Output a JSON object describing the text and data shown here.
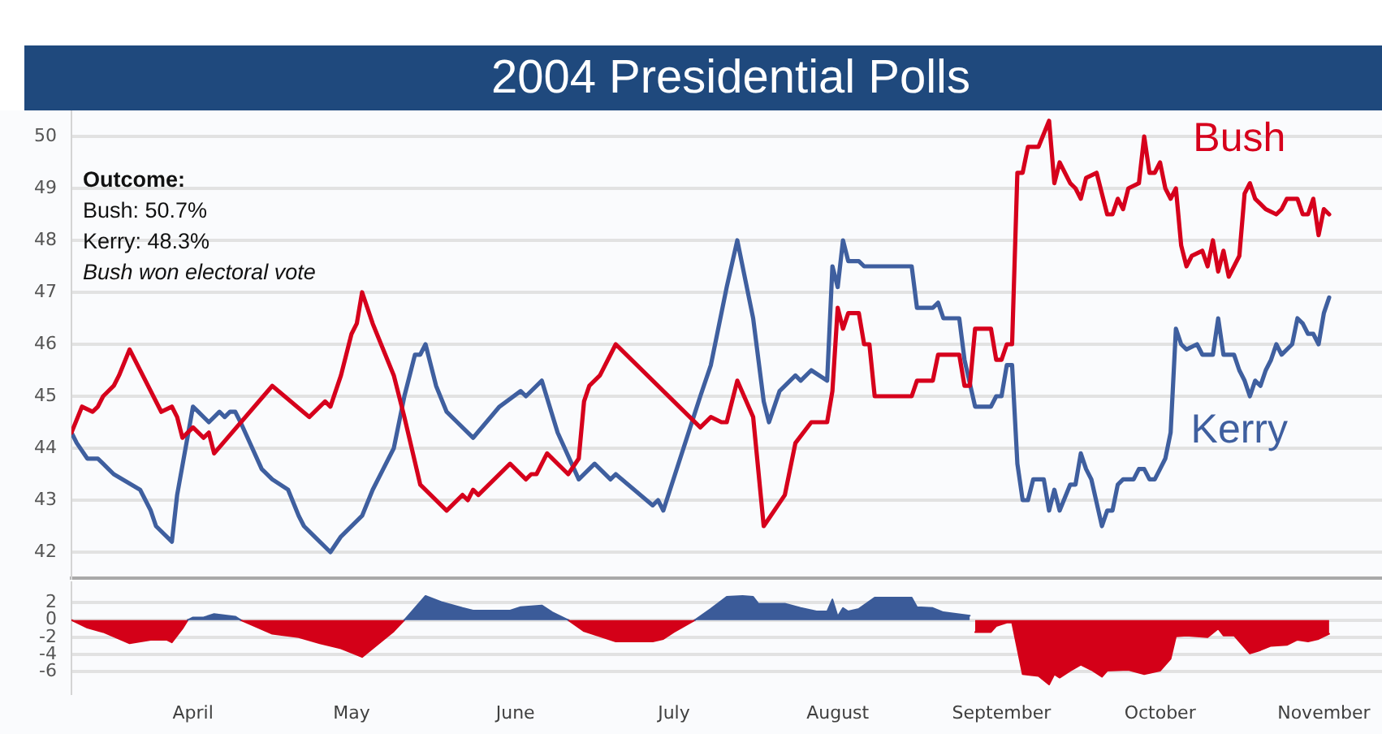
{
  "chart_data": [
    {
      "type": "line",
      "title": "2004 Presidential Polls",
      "annotations": [
        "Outcome:",
        "Bush: 50.7%",
        "Kerry: 48.3%",
        "Bush won electoral vote"
      ],
      "xlim": [
        "2004-03-09",
        "2004-11-12"
      ],
      "ylim": [
        41.5,
        50.5
      ],
      "yticks": [
        42,
        43,
        44,
        45,
        46,
        47,
        48,
        49,
        50
      ],
      "grid": "y",
      "tick_labels": "y",
      "series": [
        {
          "name": "Bush",
          "color": "#d6001c",
          "x": [
            "2004-03-09",
            "2004-03-11",
            "2004-03-13",
            "2004-03-14",
            "2004-03-15",
            "2004-03-17",
            "2004-03-18",
            "2004-03-20",
            "2004-03-26",
            "2004-03-28",
            "2004-03-29",
            "2004-03-30",
            "2004-04-01",
            "2004-04-03",
            "2004-04-04",
            "2004-04-05",
            "2004-04-16",
            "2004-04-23",
            "2004-04-26",
            "2004-04-27",
            "2004-04-29",
            "2004-05-01",
            "2004-05-02",
            "2004-05-03",
            "2004-05-05",
            "2004-05-07",
            "2004-05-09",
            "2004-05-11",
            "2004-05-14",
            "2004-05-19",
            "2004-05-22",
            "2004-05-23",
            "2004-05-24",
            "2004-05-25",
            "2004-05-31",
            "2004-06-03",
            "2004-06-04",
            "2004-06-05",
            "2004-06-07",
            "2004-06-11",
            "2004-06-13",
            "2004-06-14",
            "2004-06-15",
            "2004-06-17",
            "2004-06-20",
            "2004-07-06",
            "2004-07-08",
            "2004-07-10",
            "2004-07-11",
            "2004-07-13",
            "2004-07-16",
            "2004-07-18",
            "2004-07-22",
            "2004-07-24",
            "2004-07-27",
            "2004-07-30",
            "2004-07-31",
            "2004-08-01",
            "2004-08-02",
            "2004-08-03",
            "2004-08-05",
            "2004-08-06",
            "2004-08-07",
            "2004-08-08",
            "2004-08-15",
            "2004-08-16",
            "2004-08-19",
            "2004-08-20",
            "2004-08-24",
            "2004-08-25",
            "2004-08-26",
            "2004-08-27",
            "2004-08-30",
            "2004-08-31",
            "2004-09-01",
            "2004-09-02",
            "2004-09-03",
            "2004-09-04",
            "2004-09-05",
            "2004-09-06",
            "2004-09-08",
            "2004-09-10",
            "2004-09-11",
            "2004-09-12",
            "2004-09-14",
            "2004-09-15",
            "2004-09-16",
            "2004-09-17",
            "2004-09-19",
            "2004-09-21",
            "2004-09-22",
            "2004-09-23",
            "2004-09-24",
            "2004-09-25",
            "2004-09-27",
            "2004-09-28",
            "2004-09-29",
            "2004-09-30",
            "2004-10-01",
            "2004-10-02",
            "2004-10-03",
            "2004-10-04",
            "2004-10-05",
            "2004-10-06",
            "2004-10-07",
            "2004-10-09",
            "2004-10-10",
            "2004-10-11",
            "2004-10-12",
            "2004-10-13",
            "2004-10-14",
            "2004-10-16",
            "2004-10-17",
            "2004-10-18",
            "2004-10-19",
            "2004-10-20",
            "2004-10-21",
            "2004-10-23",
            "2004-10-24",
            "2004-10-25",
            "2004-10-27",
            "2004-10-28",
            "2004-10-29",
            "2004-10-30",
            "2004-10-31",
            "2004-11-01",
            "2004-11-02"
          ],
          "values": [
            44.3,
            44.8,
            44.7,
            44.8,
            45.0,
            45.2,
            45.4,
            45.9,
            44.7,
            44.8,
            44.6,
            44.2,
            44.4,
            44.2,
            44.3,
            43.9,
            45.2,
            44.6,
            44.9,
            44.8,
            45.4,
            46.2,
            46.4,
            47.0,
            46.4,
            45.9,
            45.4,
            44.6,
            43.3,
            42.8,
            43.1,
            43.0,
            43.2,
            43.1,
            43.7,
            43.4,
            43.5,
            43.5,
            43.9,
            43.5,
            43.8,
            44.9,
            45.2,
            45.4,
            46.0,
            44.4,
            44.6,
            44.5,
            44.5,
            45.3,
            44.6,
            42.5,
            43.1,
            44.1,
            44.5,
            44.5,
            45.1,
            46.7,
            46.3,
            46.6,
            46.6,
            46.0,
            46.0,
            45.0,
            45.0,
            45.3,
            45.3,
            45.8,
            45.8,
            45.2,
            45.2,
            46.3,
            46.3,
            45.7,
            45.7,
            46.0,
            46.0,
            49.3,
            49.3,
            49.8,
            49.8,
            50.3,
            49.1,
            49.5,
            49.1,
            49.0,
            48.8,
            49.2,
            49.3,
            48.5,
            48.5,
            48.8,
            48.6,
            49.0,
            49.1,
            50.0,
            49.3,
            49.3,
            49.5,
            49.0,
            48.8,
            49.0,
            47.9,
            47.5,
            47.7,
            47.8,
            47.5,
            48.0,
            47.4,
            47.8,
            47.3,
            47.7,
            48.9,
            49.1,
            48.8,
            48.7,
            48.6,
            48.5,
            48.6,
            48.8,
            48.8,
            48.5,
            48.5,
            48.8,
            48.1,
            48.6,
            48.5
          ]
        },
        {
          "name": "Kerry",
          "color": "#3f5f9f",
          "x": [
            "2004-03-09",
            "2004-03-10",
            "2004-03-12",
            "2004-03-14",
            "2004-03-15",
            "2004-03-16",
            "2004-03-17",
            "2004-03-22",
            "2004-03-24",
            "2004-03-25",
            "2004-03-28",
            "2004-03-29",
            "2004-04-01",
            "2004-04-02",
            "2004-04-04",
            "2004-04-06",
            "2004-04-07",
            "2004-04-08",
            "2004-04-09",
            "2004-04-10",
            "2004-04-14",
            "2004-04-16",
            "2004-04-19",
            "2004-04-21",
            "2004-04-22",
            "2004-04-24",
            "2004-04-27",
            "2004-04-29",
            "2004-05-03",
            "2004-05-05",
            "2004-05-07",
            "2004-05-09",
            "2004-05-11",
            "2004-05-13",
            "2004-05-14",
            "2004-05-15",
            "2004-05-17",
            "2004-05-19",
            "2004-05-21",
            "2004-05-24",
            "2004-05-29",
            "2004-06-02",
            "2004-06-03",
            "2004-06-06",
            "2004-06-09",
            "2004-06-13",
            "2004-06-16",
            "2004-06-19",
            "2004-06-20",
            "2004-06-27",
            "2004-06-28",
            "2004-06-29",
            "2004-07-06",
            "2004-07-08",
            "2004-07-11",
            "2004-07-13",
            "2004-07-16",
            "2004-07-18",
            "2004-07-19",
            "2004-07-21",
            "2004-07-24",
            "2004-07-25",
            "2004-07-27",
            "2004-07-30",
            "2004-07-31",
            "2004-08-01",
            "2004-08-02",
            "2004-08-03",
            "2004-08-05",
            "2004-08-06",
            "2004-08-15",
            "2004-08-16",
            "2004-08-19",
            "2004-08-20",
            "2004-08-21",
            "2004-08-24",
            "2004-08-25",
            "2004-08-27",
            "2004-08-30",
            "2004-08-31",
            "2004-09-01",
            "2004-09-02",
            "2004-09-03",
            "2004-09-04",
            "2004-09-05",
            "2004-09-06",
            "2004-09-07",
            "2004-09-09",
            "2004-09-10",
            "2004-09-11",
            "2004-09-12",
            "2004-09-14",
            "2004-09-15",
            "2004-09-16",
            "2004-09-17",
            "2004-09-18",
            "2004-09-20",
            "2004-09-21",
            "2004-09-22",
            "2004-09-23",
            "2004-09-24",
            "2004-09-26",
            "2004-09-27",
            "2004-09-28",
            "2004-09-29",
            "2004-09-30",
            "2004-10-01",
            "2004-10-02",
            "2004-10-03",
            "2004-10-04",
            "2004-10-05",
            "2004-10-06",
            "2004-10-08",
            "2004-10-09",
            "2004-10-11",
            "2004-10-12",
            "2004-10-13",
            "2004-10-15",
            "2004-10-16",
            "2004-10-17",
            "2004-10-18",
            "2004-10-19",
            "2004-10-20",
            "2004-10-21",
            "2004-10-22",
            "2004-10-23",
            "2004-10-24",
            "2004-10-26",
            "2004-10-27",
            "2004-10-28",
            "2004-10-29",
            "2004-10-30",
            "2004-10-31",
            "2004-11-01",
            "2004-11-02"
          ],
          "values": [
            44.3,
            44.1,
            43.8,
            43.8,
            43.7,
            43.6,
            43.5,
            43.2,
            42.8,
            42.5,
            42.2,
            43.1,
            44.8,
            44.7,
            44.5,
            44.7,
            44.6,
            44.7,
            44.7,
            44.5,
            43.6,
            43.4,
            43.2,
            42.7,
            42.5,
            42.3,
            42.0,
            42.3,
            42.7,
            43.2,
            43.6,
            44.0,
            45.0,
            45.8,
            45.8,
            46.0,
            45.2,
            44.7,
            44.5,
            44.2,
            44.8,
            45.1,
            45.0,
            45.3,
            44.3,
            43.4,
            43.7,
            43.4,
            43.5,
            42.9,
            43.0,
            42.8,
            45.0,
            45.6,
            47.1,
            48.0,
            46.5,
            44.9,
            44.5,
            45.1,
            45.4,
            45.3,
            45.5,
            45.3,
            47.5,
            47.1,
            48.0,
            47.6,
            47.6,
            47.5,
            47.5,
            46.7,
            46.7,
            46.8,
            46.5,
            46.5,
            45.7,
            44.8,
            44.8,
            45.0,
            45.0,
            45.6,
            45.6,
            43.7,
            43.0,
            43.0,
            43.4,
            43.4,
            42.8,
            43.2,
            42.8,
            43.3,
            43.3,
            43.9,
            43.6,
            43.4,
            42.5,
            42.8,
            42.8,
            43.3,
            43.4,
            43.4,
            43.6,
            43.6,
            43.4,
            43.4,
            43.6,
            43.8,
            44.3,
            46.3,
            46.0,
            45.9,
            46.0,
            45.8,
            45.8,
            46.5,
            45.8,
            45.8,
            45.5,
            45.3,
            45.0,
            45.3,
            45.2,
            45.5,
            45.7,
            46.0,
            45.8,
            46.0,
            46.5,
            46.4,
            46.2,
            46.2,
            46.0,
            46.6,
            46.9
          ]
        }
      ]
    },
    {
      "type": "area",
      "xlim": [
        "2004-03-09",
        "2004-11-12"
      ],
      "xticks": [
        {
          "value": "2004-04-01",
          "label": "April"
        },
        {
          "value": "2004-05-01",
          "label": "May"
        },
        {
          "value": "2004-06-01",
          "label": "June"
        },
        {
          "value": "2004-07-01",
          "label": "July"
        },
        {
          "value": "2004-08-01",
          "label": "August"
        },
        {
          "value": "2004-09-01",
          "label": "September"
        },
        {
          "value": "2004-10-01",
          "label": "October"
        },
        {
          "value": "2004-11-01",
          "label": "November"
        }
      ],
      "ylim": [
        -8.5,
        4.5
      ],
      "yticks": [
        -6,
        -4,
        -2,
        0,
        2
      ],
      "grid": "y",
      "series": [
        {
          "color": "#3b5b99",
          "x": [
            "2004-03-31",
            "2004-04-01",
            "2004-04-03",
            "2004-04-05",
            "2004-04-09",
            "2004-04-10",
            "2004-04-20",
            "2004-05-11",
            "2004-05-15",
            "2004-05-18",
            "2004-05-22",
            "2004-05-24",
            "2004-05-31",
            "2004-06-02",
            "2004-06-06",
            "2004-06-08",
            "2004-06-11",
            "2004-06-20",
            "2004-07-05",
            "2004-07-08",
            "2004-07-11",
            "2004-07-14",
            "2004-07-16",
            "2004-07-17",
            "2004-07-22",
            "2004-07-25",
            "2004-07-28",
            "2004-07-30",
            "2004-07-31",
            "2004-08-01",
            "2004-08-02",
            "2004-08-03",
            "2004-08-05",
            "2004-08-08",
            "2004-08-15",
            "2004-08-16",
            "2004-08-19",
            "2004-08-21",
            "2004-08-26"
          ],
          "values": [
            0,
            0.3,
            0.3,
            0.7,
            0.4,
            0,
            null,
            0,
            2.8,
            2.1,
            1.4,
            1.1,
            1.1,
            1.5,
            1.7,
            0.9,
            0,
            null,
            0,
            1.3,
            2.7,
            2.8,
            2.7,
            1.9,
            1.9,
            1.4,
            1.0,
            1.0,
            2.4,
            0.4,
            1.4,
            1.0,
            1.3,
            2.6,
            2.6,
            1.5,
            1.4,
            0.9,
            0.5
          ]
        },
        {
          "color": "#d40018",
          "x": [
            "2004-03-09",
            "2004-03-12",
            "2004-03-15",
            "2004-03-20",
            "2004-03-24",
            "2004-03-27",
            "2004-03-28",
            "2004-03-30",
            "2004-03-31",
            "2004-04-05",
            "2004-04-10",
            "2004-04-16",
            "2004-04-21",
            "2004-04-25",
            "2004-04-29",
            "2004-05-03",
            "2004-05-09",
            "2004-05-11",
            "2004-05-20",
            "2004-06-11",
            "2004-06-14",
            "2004-06-20",
            "2004-06-27",
            "2004-06-29",
            "2004-07-01",
            "2004-07-05",
            "2004-07-20",
            "2004-08-27",
            "2004-08-30",
            "2004-08-31",
            "2004-09-02",
            "2004-09-03",
            "2004-09-05",
            "2004-09-08",
            "2004-09-10",
            "2004-09-11",
            "2004-09-12",
            "2004-09-14",
            "2004-09-16",
            "2004-09-18",
            "2004-09-20",
            "2004-09-21",
            "2004-09-25",
            "2004-09-28",
            "2004-10-01",
            "2004-10-03",
            "2004-10-04",
            "2004-10-06",
            "2004-10-10",
            "2004-10-12",
            "2004-10-13",
            "2004-10-15",
            "2004-10-18",
            "2004-10-20",
            "2004-10-22",
            "2004-10-25",
            "2004-10-27",
            "2004-10-29",
            "2004-10-31",
            "2004-11-02"
          ],
          "values": [
            0,
            -0.9,
            -1.4,
            -2.7,
            -2.3,
            -2.3,
            -2.6,
            -1.0,
            0,
            null,
            0,
            -1.6,
            -2.0,
            -2.7,
            -3.3,
            -4.3,
            -1.3,
            0,
            null,
            0,
            -1.3,
            -2.5,
            -2.5,
            -2.2,
            -1.4,
            0,
            null,
            -1.4,
            -1.4,
            -0.7,
            -0.3,
            -0.3,
            -6.3,
            -6.5,
            -7.5,
            -6.3,
            -6.7,
            -5.9,
            -5.2,
            -5.8,
            -6.6,
            -5.9,
            -5.8,
            -6.3,
            -5.9,
            -4.5,
            -1.9,
            -1.8,
            -2.0,
            -1.0,
            -1.8,
            -1.8,
            -3.9,
            -3.5,
            -3.0,
            -2.9,
            -2.3,
            -2.5,
            -2.2,
            -1.6
          ]
        }
      ]
    }
  ]
}
